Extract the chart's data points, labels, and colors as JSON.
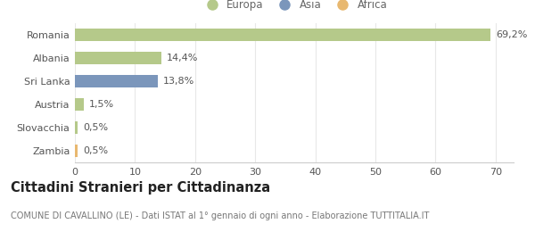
{
  "categories": [
    "Romania",
    "Albania",
    "Sri Lanka",
    "Austria",
    "Slovacchia",
    "Zambia"
  ],
  "values": [
    69.2,
    14.4,
    13.8,
    1.5,
    0.5,
    0.5
  ],
  "labels": [
    "69,2%",
    "14,4%",
    "13,8%",
    "1,5%",
    "0,5%",
    "0,5%"
  ],
  "colors": [
    "#b5c98a",
    "#b5c98a",
    "#7b96bb",
    "#b5c98a",
    "#b5c98a",
    "#e8b870"
  ],
  "legend_items": [
    {
      "label": "Europa",
      "color": "#b5c98a"
    },
    {
      "label": "Asia",
      "color": "#7b96bb"
    },
    {
      "label": "Africa",
      "color": "#e8b870"
    }
  ],
  "xlim": [
    0,
    73
  ],
  "xticks": [
    0,
    10,
    20,
    30,
    40,
    50,
    60,
    70
  ],
  "title": "Cittadini Stranieri per Cittadinanza",
  "subtitle": "COMUNE DI CAVALLINO (LE) - Dati ISTAT al 1° gennaio di ogni anno - Elaborazione TUTTITALIA.IT",
  "bar_height": 0.55,
  "background_color": "#ffffff",
  "grid_color": "#e8e8e8",
  "label_fontsize": 8,
  "tick_fontsize": 8,
  "title_fontsize": 10.5,
  "subtitle_fontsize": 7
}
